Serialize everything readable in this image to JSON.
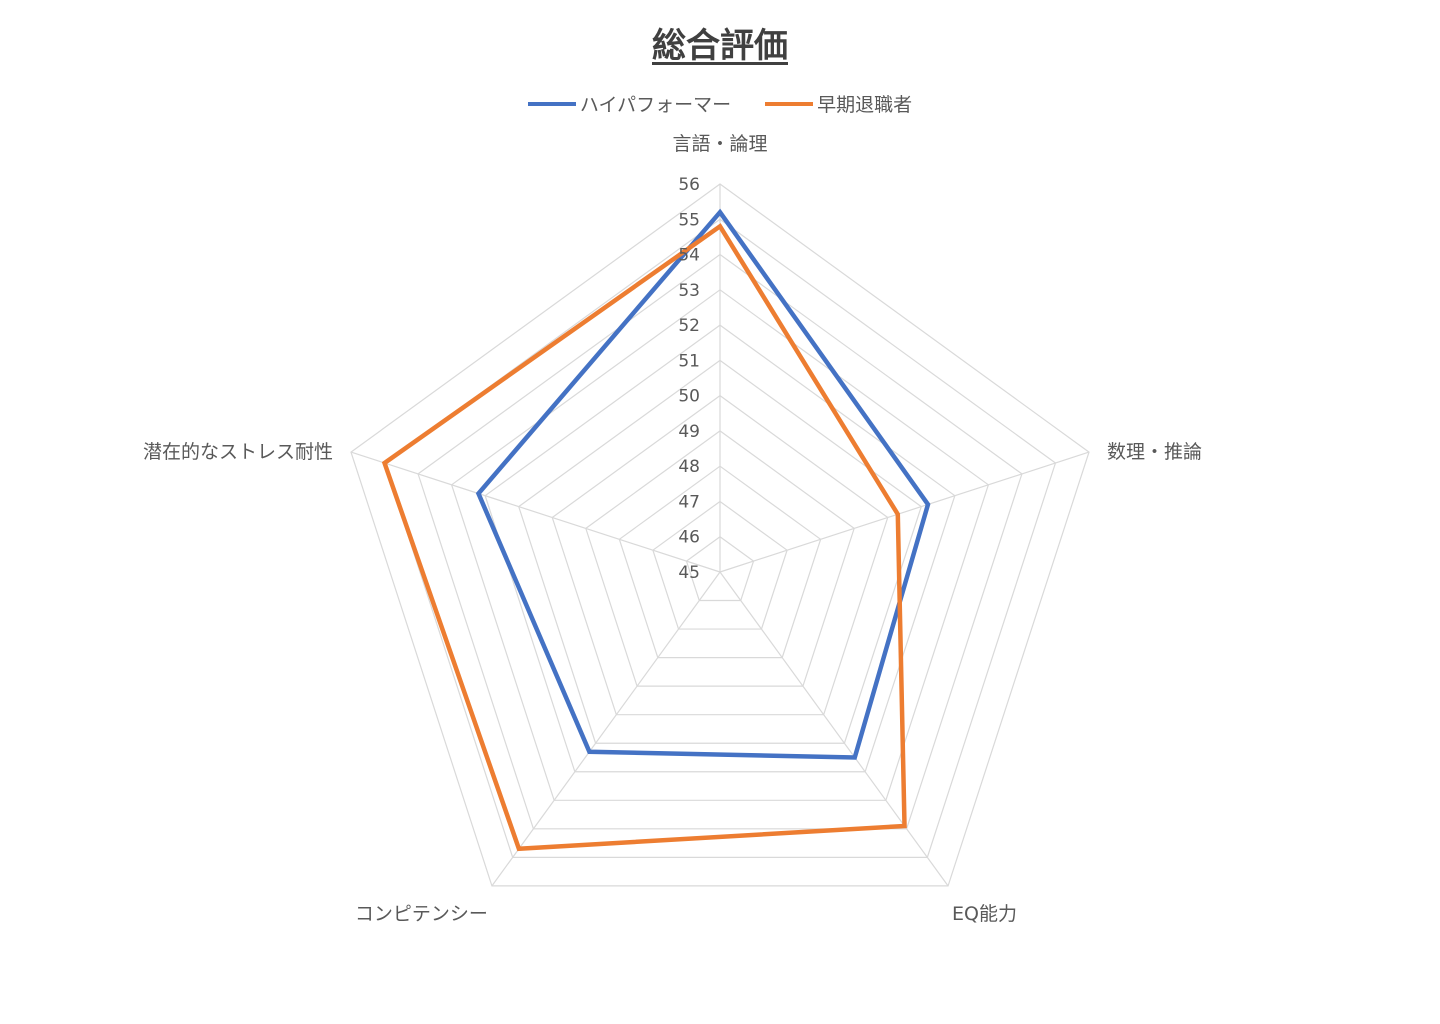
{
  "chart_data": {
    "type": "radar",
    "title": "総合評価",
    "categories": [
      "言語・論理",
      "数理・推論",
      "EQ能力",
      "コンピテンシー",
      "潜在的なストレス耐性"
    ],
    "rlim": [
      45,
      56
    ],
    "ticks": [
      45,
      46,
      47,
      48,
      49,
      50,
      51,
      52,
      53,
      54,
      55,
      56
    ],
    "grid": true,
    "legend_position": "top",
    "series": [
      {
        "name": "ハイパフォーマー",
        "color": "#4472C4",
        "values": [
          55.2,
          51.2,
          51.5,
          51.3,
          52.2
        ]
      },
      {
        "name": "早期退職者",
        "color": "#ED7D31",
        "values": [
          54.8,
          50.3,
          53.9,
          54.7,
          55.0
        ]
      }
    ]
  }
}
